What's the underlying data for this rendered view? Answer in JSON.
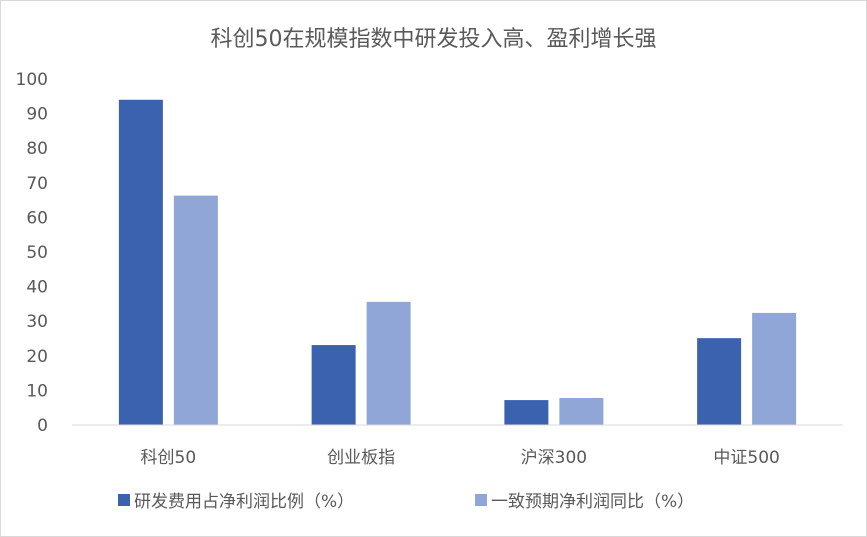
{
  "chart_data": {
    "type": "bar",
    "title": "科创50在规模指数中研发投入高、盈利增长强",
    "categories": [
      "科创50",
      "创业板指",
      "沪深300",
      "中证500"
    ],
    "series": [
      {
        "name": "研发费用占净利润比例（%）",
        "values": [
          94.0,
          23.1,
          7.2,
          25.1
        ],
        "color": "#3B62AE"
      },
      {
        "name": "一致预期净利润同比（%）",
        "values": [
          66.3,
          35.6,
          7.8,
          32.4
        ],
        "color": "#8FA6D7"
      }
    ],
    "ylim": [
      0,
      100
    ],
    "yticks": [
      0,
      10,
      20,
      30,
      40,
      50,
      60,
      70,
      80,
      90,
      100
    ],
    "grid": false,
    "legend": "bottom"
  }
}
